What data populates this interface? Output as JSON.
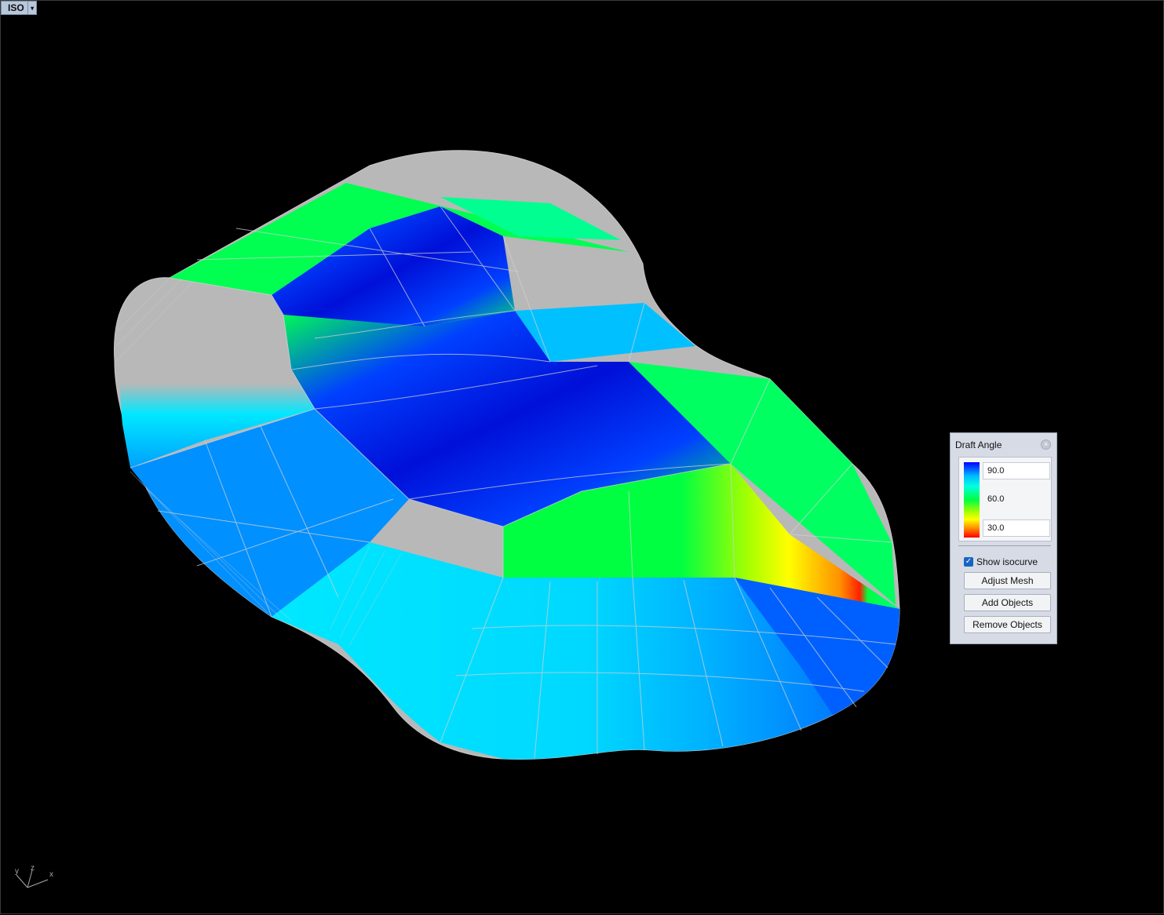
{
  "viewport": {
    "view_name": "ISO",
    "dropdown_glyph": "▾",
    "axes": {
      "x": "x",
      "y": "y",
      "z": "z"
    }
  },
  "draft_angle_panel": {
    "title": "Draft Angle",
    "close_glyph": "×",
    "legend": {
      "max": "90.0",
      "mid": "60.0",
      "min": "30.0"
    },
    "show_isocurve": {
      "label": "Show isocurve",
      "checked": true,
      "glyph": "✓"
    },
    "buttons": {
      "adjust_mesh": "Adjust Mesh",
      "add_objects": "Add Objects",
      "remove_objects": "Remove Objects"
    }
  },
  "colors": {
    "deep_blue": "#0010d8",
    "blue": "#0090ff",
    "cyan": "#00e8ff",
    "green": "#00ff40",
    "yellow": "#ffff00",
    "red": "#ff2000",
    "gray": "#b8b8b8"
  }
}
